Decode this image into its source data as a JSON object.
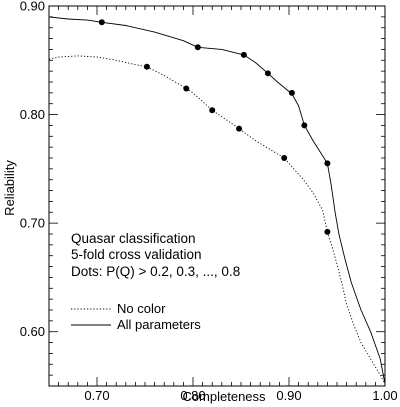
{
  "chart_data": {
    "type": "line",
    "xlabel": "Completeness",
    "ylabel": "Reliability",
    "xlim": [
      0.65,
      1.0
    ],
    "ylim": [
      0.55,
      0.9
    ],
    "x_ticks": [
      0.7,
      0.8,
      0.9,
      1.0
    ],
    "x_tick_labels": [
      "0.70",
      "0.80",
      "0.90",
      "1.00"
    ],
    "y_ticks": [
      0.6,
      0.7,
      0.8,
      0.9
    ],
    "y_tick_labels": [
      "0.60",
      "0.70",
      "0.80",
      "0.90"
    ],
    "grid": false,
    "legend_position": "bottom-left",
    "annotations": [
      "Quasar classification",
      "5-fold cross validation",
      "Dots: P(Q) > 0.2, 0.3, ..., 0.8"
    ],
    "series": [
      {
        "name": "No color",
        "style": "dotted",
        "x": [
          0.65,
          0.66,
          0.68,
          0.7,
          0.72,
          0.74,
          0.752,
          0.77,
          0.793,
          0.8,
          0.82,
          0.835,
          0.848,
          0.865,
          0.88,
          0.895,
          0.9,
          0.915,
          0.925,
          0.935,
          0.94,
          0.945,
          0.95,
          0.955,
          0.96,
          0.968,
          0.975,
          0.985,
          0.995,
          1.0
        ],
        "y": [
          0.851,
          0.853,
          0.854,
          0.853,
          0.85,
          0.846,
          0.844,
          0.836,
          0.824,
          0.82,
          0.804,
          0.795,
          0.787,
          0.776,
          0.768,
          0.76,
          0.755,
          0.74,
          0.728,
          0.712,
          0.692,
          0.678,
          0.662,
          0.645,
          0.625,
          0.605,
          0.59,
          0.575,
          0.56,
          0.552
        ]
      },
      {
        "name": "All parameters",
        "style": "solid",
        "x": [
          0.65,
          0.67,
          0.69,
          0.705,
          0.73,
          0.76,
          0.79,
          0.805,
          0.83,
          0.853,
          0.865,
          0.878,
          0.888,
          0.903,
          0.91,
          0.916,
          0.925,
          0.935,
          0.94,
          0.944,
          0.948,
          0.952,
          0.958,
          0.965,
          0.975,
          0.985,
          0.995,
          1.0
        ],
        "y": [
          0.89,
          0.888,
          0.887,
          0.885,
          0.882,
          0.876,
          0.868,
          0.862,
          0.86,
          0.855,
          0.848,
          0.838,
          0.83,
          0.819,
          0.808,
          0.79,
          0.776,
          0.762,
          0.755,
          0.735,
          0.71,
          0.69,
          0.668,
          0.645,
          0.62,
          0.6,
          0.575,
          0.552
        ]
      }
    ],
    "dots": [
      {
        "series": "No color",
        "x": [
          0.752,
          0.793,
          0.82,
          0.848,
          0.895,
          0.94
        ]
      },
      {
        "series": "No color",
        "y": [
          0.844,
          0.824,
          0.804,
          0.787,
          0.76,
          0.692
        ]
      },
      {
        "series": "All parameters",
        "x": [
          0.705,
          0.805,
          0.853,
          0.878,
          0.903,
          0.916,
          0.94
        ]
      },
      {
        "series": "All parameters",
        "y": [
          0.885,
          0.862,
          0.855,
          0.838,
          0.82,
          0.79,
          0.755
        ]
      }
    ]
  }
}
